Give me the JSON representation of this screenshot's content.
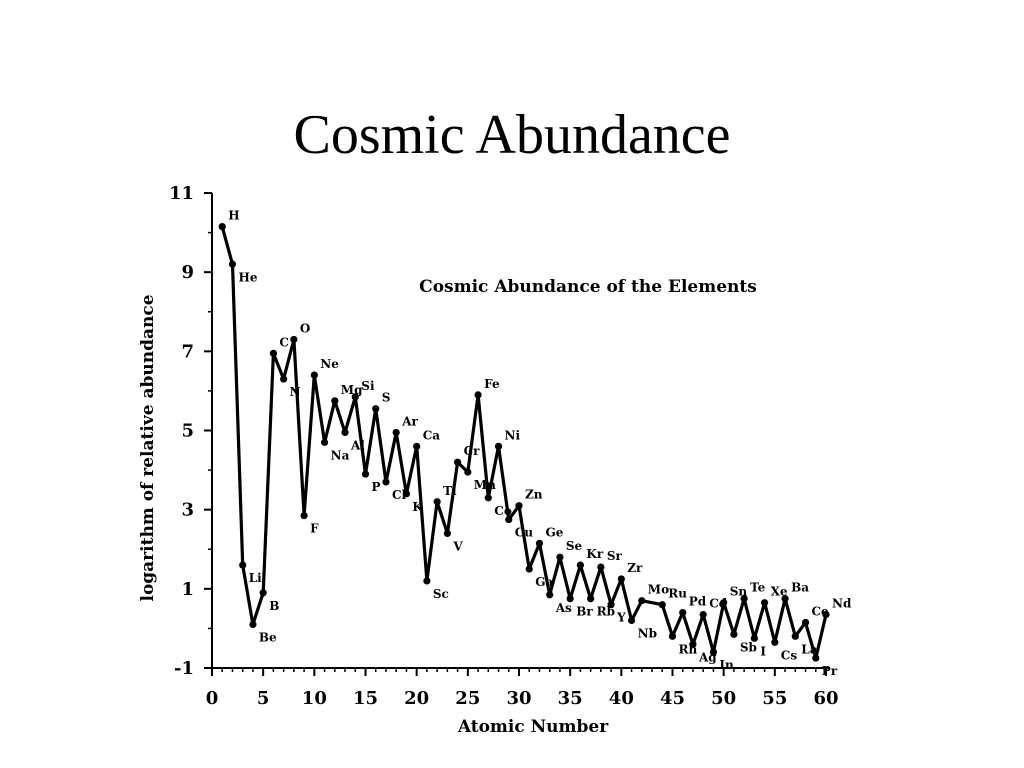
{
  "slide": {
    "title": "Cosmic Abundance"
  },
  "chart_data": {
    "type": "line",
    "title": "Cosmic Abundance of the Elements",
    "xlabel": "Atomic Number",
    "ylabel": "logarithm of relative abundance",
    "xlim": [
      0,
      60
    ],
    "ylim": [
      -1,
      11
    ],
    "xticks": [
      0,
      5,
      10,
      15,
      20,
      25,
      30,
      35,
      40,
      45,
      50,
      55,
      60
    ],
    "yticks": [
      -1,
      1,
      3,
      5,
      7,
      9,
      11
    ],
    "grid": false,
    "legend": "none",
    "color": "#000000",
    "series": [
      {
        "x": [
          1,
          2,
          3,
          4,
          5,
          6,
          7,
          8,
          9,
          10,
          11,
          12,
          13,
          14,
          15,
          16,
          17,
          18,
          19,
          20,
          21,
          22,
          23,
          24,
          25,
          26,
          27,
          28,
          29,
          30,
          31,
          32,
          33,
          34,
          35,
          36,
          37,
          38,
          39,
          40,
          41,
          42,
          43,
          44,
          45,
          46,
          47,
          48,
          49,
          50,
          51,
          52,
          53,
          54,
          55,
          56,
          57,
          58,
          59,
          60
        ],
        "values": [
          10.15,
          9.2,
          1.6,
          0.1,
          0.9,
          6.95,
          6.3,
          7.3,
          2.85,
          6.4,
          4.7,
          5.75,
          4.95,
          5.85,
          3.9,
          5.55,
          3.7,
          4.95,
          3.4,
          4.6,
          1.2,
          3.2,
          2.4,
          4.2,
          3.95,
          5.9,
          3.3,
          4.6,
          2.75,
          3.1,
          1.5,
          2.15,
          0.85,
          1.8,
          0.75,
          1.6,
          0.75,
          1.55,
          0.6,
          1.25,
          0.2,
          0.7,
          null,
          0.6,
          -0.2,
          0.4,
          -0.4,
          0.35,
          -0.6,
          0.65,
          -0.15,
          0.75,
          -0.25,
          0.65,
          -0.35,
          0.75,
          -0.2,
          0.15,
          -0.75,
          0.35
        ]
      }
    ],
    "labels": [
      {
        "text": "H",
        "z": 1
      },
      {
        "text": "He",
        "z": 2
      },
      {
        "text": "Li",
        "z": 3
      },
      {
        "text": "Be",
        "z": 4
      },
      {
        "text": "B",
        "z": 5
      },
      {
        "text": "C",
        "z": 6
      },
      {
        "text": "N",
        "z": 7
      },
      {
        "text": "O",
        "z": 8
      },
      {
        "text": "F",
        "z": 9
      },
      {
        "text": "Ne",
        "z": 10
      },
      {
        "text": "Na",
        "z": 11
      },
      {
        "text": "Mg",
        "z": 12
      },
      {
        "text": "Al",
        "z": 13
      },
      {
        "text": "Si",
        "z": 14
      },
      {
        "text": "P",
        "z": 15
      },
      {
        "text": "S",
        "z": 16
      },
      {
        "text": "Cl",
        "z": 17
      },
      {
        "text": "Ar",
        "z": 18
      },
      {
        "text": "K",
        "z": 19
      },
      {
        "text": "Ca",
        "z": 20
      },
      {
        "text": "Sc",
        "z": 21
      },
      {
        "text": "Ti",
        "z": 22
      },
      {
        "text": "V",
        "z": 23
      },
      {
        "text": "Cr",
        "z": 24
      },
      {
        "text": "Mn",
        "z": 25
      },
      {
        "text": "Fe",
        "z": 26
      },
      {
        "text": "Co",
        "z": 27
      },
      {
        "text": "Ni",
        "z": 28
      },
      {
        "text": "Cu",
        "z": 29
      },
      {
        "text": "Zn",
        "z": 30
      },
      {
        "text": "Ga",
        "z": 31
      },
      {
        "text": "Ge",
        "z": 32
      },
      {
        "text": "As",
        "z": 33
      },
      {
        "text": "Se",
        "z": 34
      },
      {
        "text": "Br",
        "z": 35
      },
      {
        "text": "Kr",
        "z": 36
      },
      {
        "text": "Rb",
        "z": 37
      },
      {
        "text": "Sr",
        "z": 38
      },
      {
        "text": "Y",
        "z": 39
      },
      {
        "text": "Zr",
        "z": 40
      },
      {
        "text": "Nb",
        "z": 41
      },
      {
        "text": "Mo",
        "z": 42
      },
      {
        "text": "Ru",
        "z": 44
      },
      {
        "text": "Rh",
        "z": 45
      },
      {
        "text": "Pd",
        "z": 46
      },
      {
        "text": "Ag",
        "z": 47
      },
      {
        "text": "Cd",
        "z": 48
      },
      {
        "text": "In",
        "z": 49
      },
      {
        "text": "Sn",
        "z": 50
      },
      {
        "text": "Sb",
        "z": 51
      },
      {
        "text": "Te",
        "z": 52
      },
      {
        "text": "I",
        "z": 53
      },
      {
        "text": "Xe",
        "z": 54
      },
      {
        "text": "Cs",
        "z": 55
      },
      {
        "text": "Ba",
        "z": 56
      },
      {
        "text": "La",
        "z": 57
      },
      {
        "text": "Ce",
        "z": 58
      },
      {
        "text": "Pr",
        "z": 59
      },
      {
        "text": "Nd",
        "z": 60
      }
    ]
  }
}
